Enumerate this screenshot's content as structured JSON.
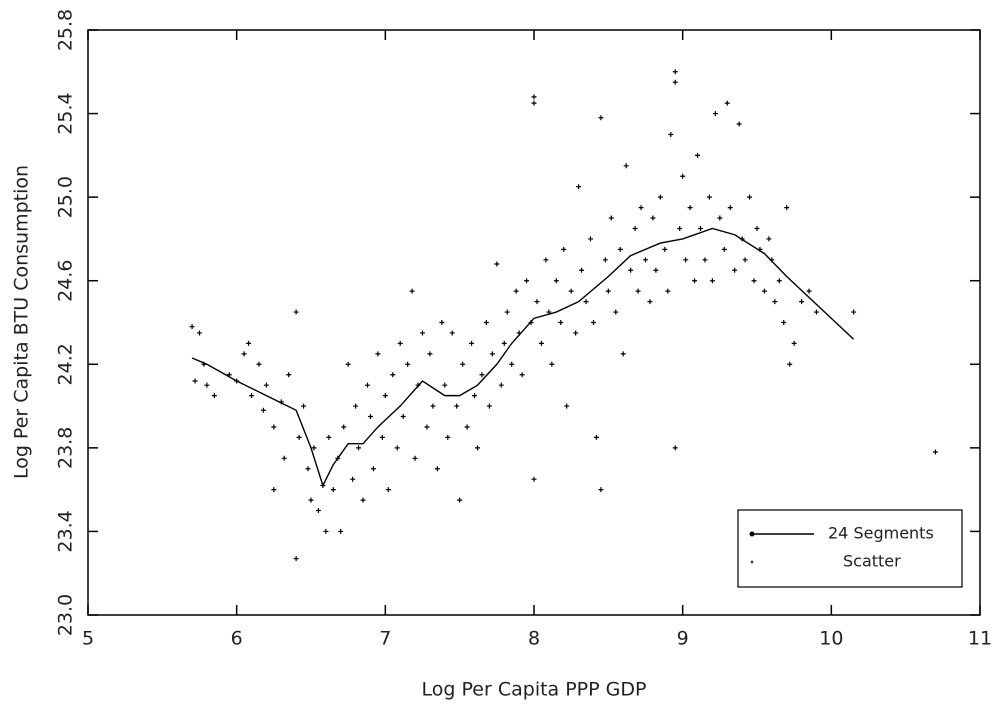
{
  "chart_data": {
    "type": "scatter",
    "x_label": "Log Per Capita PPP GDP",
    "y_label": "Log Per Capita BTU Consumption",
    "xlim": [
      5,
      11
    ],
    "xticks": [
      5,
      6,
      7,
      8,
      9,
      10,
      11
    ],
    "ylim": [
      23,
      25.8
    ],
    "yticks": [
      {
        "value": 23,
        "label": "23.0"
      },
      23.4,
      23.8,
      24.2,
      24.6,
      {
        "value": 25,
        "label": "25.0"
      },
      25.4,
      25.8
    ],
    "legend": "lower right",
    "series": [
      {
        "name": "24 Segments",
        "type": "line",
        "color": "#000000",
        "x": [
          5.7,
          5.8,
          6.0,
          6.2,
          6.4,
          6.5,
          6.58,
          6.65,
          6.75,
          6.85,
          6.95,
          7.1,
          7.25,
          7.4,
          7.5,
          7.62,
          7.75,
          7.85,
          8.0,
          8.15,
          8.3,
          8.5,
          8.65,
          8.85,
          9.0,
          9.2,
          9.35,
          9.55,
          9.7,
          10.15
        ],
        "values": [
          24.23,
          24.2,
          24.12,
          24.05,
          23.98,
          23.8,
          23.62,
          23.72,
          23.82,
          23.82,
          23.9,
          24.0,
          24.12,
          24.05,
          24.05,
          24.1,
          24.2,
          24.3,
          24.42,
          24.45,
          24.5,
          24.62,
          24.72,
          24.78,
          24.8,
          24.85,
          24.82,
          24.73,
          24.62,
          24.32
        ]
      },
      {
        "name": "Scatter",
        "type": "scatter",
        "color": "#000000",
        "x": [
          5.7,
          5.72,
          5.75,
          5.78,
          5.8,
          5.85,
          5.95,
          6.0,
          6.05,
          6.08,
          6.1,
          6.15,
          6.18,
          6.2,
          6.25,
          6.25,
          6.3,
          6.32,
          6.35,
          6.4,
          6.4,
          6.42,
          6.45,
          6.48,
          6.5,
          6.52,
          6.55,
          6.58,
          6.6,
          6.62,
          6.65,
          6.68,
          6.7,
          6.72,
          6.75,
          6.78,
          6.8,
          6.82,
          6.85,
          6.88,
          6.9,
          6.92,
          6.95,
          6.98,
          7.0,
          7.02,
          7.05,
          7.08,
          7.1,
          7.12,
          7.15,
          7.18,
          7.2,
          7.22,
          7.25,
          7.28,
          7.3,
          7.32,
          7.35,
          7.38,
          7.4,
          7.42,
          7.45,
          7.48,
          7.5,
          7.52,
          7.55,
          7.58,
          7.6,
          7.62,
          7.65,
          7.68,
          7.7,
          7.72,
          7.75,
          7.78,
          7.8,
          7.82,
          7.85,
          7.88,
          7.9,
          7.92,
          7.95,
          7.98,
          8.0,
          8.0,
          8.0,
          8.02,
          8.05,
          8.08,
          8.1,
          8.12,
          8.15,
          8.18,
          8.2,
          8.22,
          8.25,
          8.28,
          8.3,
          8.32,
          8.35,
          8.38,
          8.4,
          8.42,
          8.45,
          8.45,
          8.48,
          8.5,
          8.52,
          8.55,
          8.58,
          8.6,
          8.62,
          8.65,
          8.68,
          8.7,
          8.72,
          8.75,
          8.78,
          8.8,
          8.82,
          8.85,
          8.88,
          8.9,
          8.92,
          8.95,
          8.95,
          8.95,
          8.98,
          9.0,
          9.02,
          9.05,
          9.08,
          9.1,
          9.12,
          9.15,
          9.18,
          9.2,
          9.22,
          9.25,
          9.28,
          9.3,
          9.32,
          9.35,
          9.38,
          9.4,
          9.42,
          9.45,
          9.48,
          9.5,
          9.52,
          9.55,
          9.58,
          9.6,
          9.62,
          9.65,
          9.68,
          9.7,
          9.72,
          9.75,
          9.8,
          9.85,
          9.9,
          10.15,
          10.7
        ],
        "values": [
          24.38,
          24.12,
          24.35,
          24.2,
          24.1,
          24.05,
          24.15,
          24.12,
          24.25,
          24.3,
          24.05,
          24.2,
          23.98,
          24.1,
          23.9,
          23.6,
          24.02,
          23.75,
          24.15,
          24.45,
          23.27,
          23.85,
          24.0,
          23.7,
          23.55,
          23.8,
          23.5,
          23.62,
          23.4,
          23.85,
          23.6,
          23.75,
          23.4,
          23.9,
          24.2,
          23.65,
          24.0,
          23.8,
          23.55,
          24.1,
          23.95,
          23.7,
          24.25,
          23.85,
          24.05,
          23.6,
          24.15,
          23.8,
          24.3,
          23.95,
          24.2,
          24.55,
          23.75,
          24.1,
          24.35,
          23.9,
          24.25,
          24.0,
          23.7,
          24.4,
          24.1,
          23.85,
          24.35,
          24.0,
          23.55,
          24.2,
          23.9,
          24.3,
          24.05,
          23.8,
          24.15,
          24.4,
          24.0,
          24.25,
          24.68,
          24.1,
          24.3,
          24.45,
          24.2,
          24.55,
          24.35,
          24.15,
          24.6,
          24.4,
          25.48,
          25.45,
          23.65,
          24.5,
          24.3,
          24.7,
          24.45,
          24.2,
          24.6,
          24.4,
          24.75,
          24.0,
          24.55,
          24.35,
          25.05,
          24.65,
          24.5,
          24.8,
          24.4,
          23.85,
          25.38,
          23.6,
          24.7,
          24.55,
          24.9,
          24.45,
          24.75,
          24.25,
          25.15,
          24.65,
          24.85,
          24.55,
          24.95,
          24.7,
          24.5,
          24.9,
          24.65,
          25.0,
          24.75,
          24.55,
          25.3,
          25.6,
          25.55,
          23.8,
          24.85,
          25.1,
          24.7,
          24.95,
          24.6,
          25.2,
          24.85,
          24.7,
          25.0,
          24.6,
          25.4,
          24.9,
          24.75,
          25.45,
          24.95,
          24.65,
          25.35,
          24.8,
          24.7,
          25.0,
          24.6,
          24.85,
          24.75,
          24.55,
          24.8,
          24.7,
          24.5,
          24.6,
          24.4,
          24.95,
          24.2,
          24.3,
          24.5,
          24.55,
          24.45,
          24.45,
          23.78
        ]
      }
    ]
  }
}
